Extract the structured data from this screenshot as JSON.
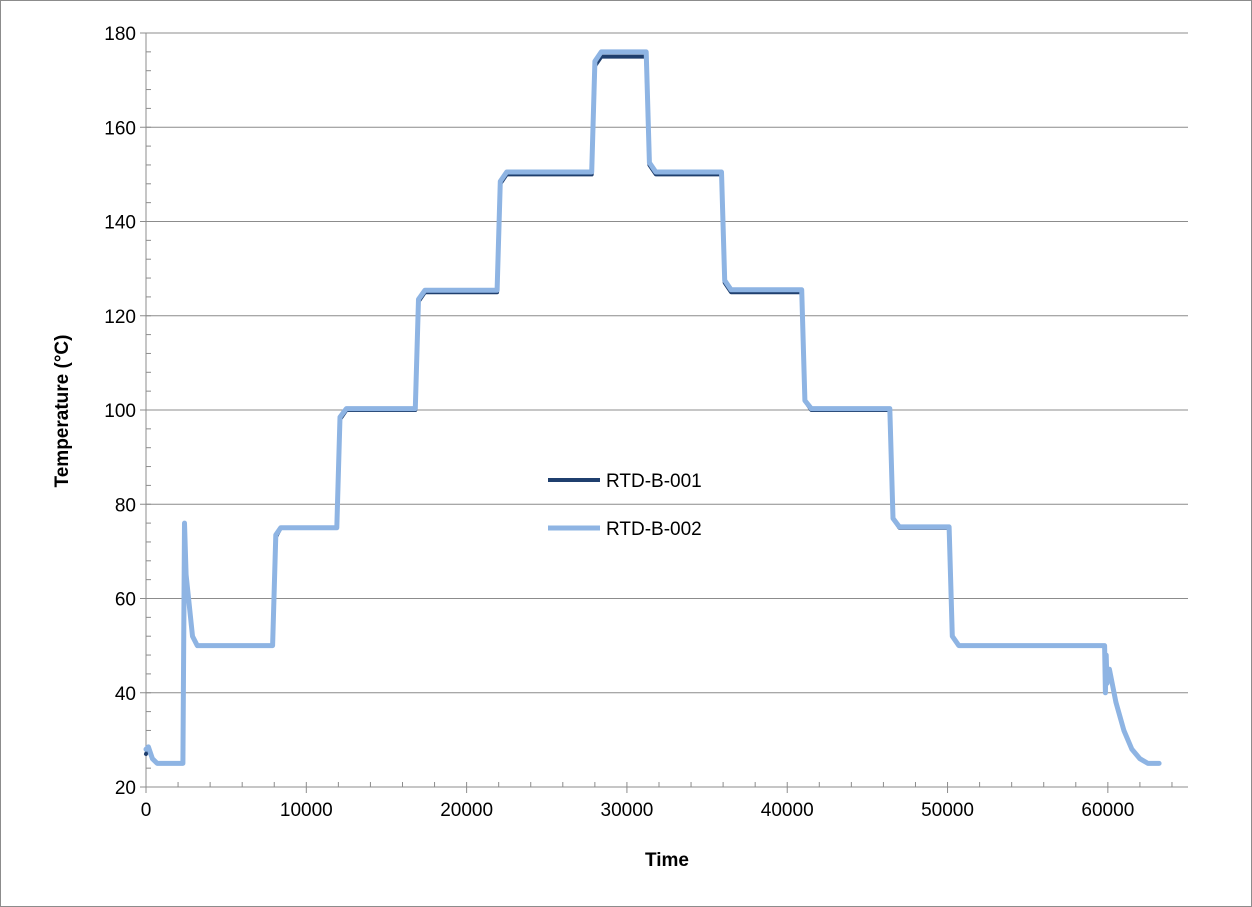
{
  "chart_data": {
    "type": "line",
    "title": "",
    "xlabel": "Time",
    "ylabel": "Temperature (°C)",
    "xlim": [
      0,
      65000
    ],
    "ylim": [
      20,
      180
    ],
    "x_ticks": [
      0,
      10000,
      20000,
      30000,
      40000,
      50000,
      60000
    ],
    "y_ticks": [
      20,
      40,
      60,
      80,
      100,
      120,
      140,
      160,
      180
    ],
    "grid": "horizontal major",
    "legend_position": "center",
    "series": [
      {
        "name": "RTD-B-001",
        "color": "#1f3f6e",
        "x": [
          0,
          150,
          400,
          700,
          2300,
          2400,
          2500,
          2900,
          3200,
          7900,
          8100,
          8400,
          11900,
          12100,
          12500,
          16800,
          17000,
          17400,
          21900,
          22100,
          22500,
          27800,
          28000,
          28400,
          31200,
          31400,
          31800,
          35900,
          36100,
          36500,
          40900,
          41100,
          41500,
          46400,
          46600,
          47000,
          50100,
          50300,
          50700,
          59800,
          59850,
          59900,
          59950,
          60100,
          60500,
          61000,
          61500,
          62000,
          62500,
          63200
        ],
        "y": [
          27,
          28,
          26,
          25,
          25,
          76,
          65,
          52,
          50,
          50,
          73,
          75,
          75,
          98,
          100,
          100,
          123,
          125,
          125,
          148,
          150,
          150,
          173,
          175,
          175,
          152,
          150,
          150,
          127,
          125,
          125,
          102,
          100,
          100,
          77,
          75,
          75,
          52,
          50,
          50,
          40,
          48,
          42,
          45,
          38,
          32,
          28,
          26,
          25,
          25
        ]
      },
      {
        "name": "RTD-B-002",
        "color": "#8eb4e3",
        "x": [
          0,
          150,
          400,
          700,
          2300,
          2400,
          2500,
          2900,
          3200,
          7900,
          8100,
          8400,
          11900,
          12100,
          12500,
          16800,
          17000,
          17400,
          21900,
          22100,
          22500,
          27800,
          28000,
          28400,
          31200,
          31400,
          31800,
          35900,
          36100,
          36500,
          40900,
          41100,
          41500,
          46400,
          46600,
          47000,
          50100,
          50300,
          50700,
          59800,
          59850,
          59900,
          59950,
          60100,
          60500,
          61000,
          61500,
          62000,
          62500,
          63200
        ],
        "y": [
          28,
          28.5,
          26,
          25,
          25,
          76,
          65,
          52,
          50,
          50,
          73.5,
          75,
          75,
          98.5,
          100.3,
          100.3,
          123.5,
          125.4,
          125.4,
          148.5,
          150.5,
          150.5,
          174,
          176,
          176,
          152.5,
          150.5,
          150.5,
          127.5,
          125.5,
          125.5,
          102,
          100.3,
          100.3,
          77,
          75.2,
          75.2,
          52,
          50,
          50,
          40,
          48,
          42,
          45,
          38,
          32,
          28,
          26,
          25,
          25
        ]
      }
    ]
  }
}
